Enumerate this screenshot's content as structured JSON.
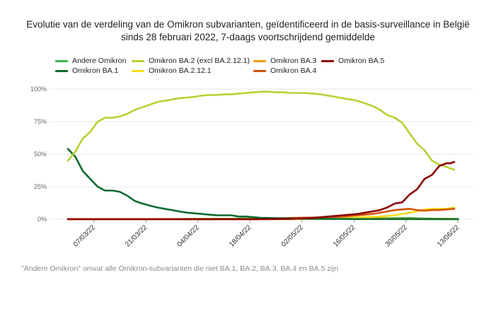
{
  "title_line1": "Evolutie van de verdeling van de Omikron subvarianten, geïdentificeerd in de basis-surveillance in België",
  "title_line2": "sinds 28 februari 2022, 7-daags voortschrijdend gemiddelde",
  "footnote": "\"Andere Omikron\" omvat alle Omikron-subvarianten die niet BA.1, BA.2, BA.3, BA.4 en BA.5 zijn",
  "chart_data": {
    "type": "line",
    "title": "Evolutie van de verdeling van de Omikron subvarianten, geïdentificeerd in de basis-surveillance in België sinds 28 februari 2022, 7-daags voortschrijdend gemiddelde",
    "ylim": [
      0,
      100
    ],
    "yticks": [
      "0%",
      "25%",
      "50%",
      "75%",
      "100%"
    ],
    "ytick_values": [
      0,
      25,
      50,
      75,
      100
    ],
    "xticks": [
      "07/03/22",
      "21/03/22",
      "04/04/22",
      "18/04/22",
      "02/05/22",
      "16/05/22",
      "30/05/22",
      "13/06/22"
    ],
    "xtick_days": [
      7,
      21,
      35,
      49,
      63,
      77,
      91,
      105
    ],
    "x_unit": "date (day of period starting 28/02/22)",
    "grid": "horizontal",
    "legend_position": "top",
    "series": [
      {
        "name": "Andere Omikron",
        "color": "#3cb44b",
        "points": [
          [
            0,
            0
          ],
          [
            20,
            0
          ],
          [
            40,
            0.3
          ],
          [
            60,
            0.5
          ],
          [
            80,
            0.5
          ],
          [
            88,
            0.8
          ],
          [
            92,
            1
          ],
          [
            96,
            0.5
          ],
          [
            100,
            0.3
          ],
          [
            105,
            0.2
          ]
        ]
      },
      {
        "name": "Omikron BA.1",
        "color": "#0b6b2e",
        "points": [
          [
            0,
            54
          ],
          [
            2,
            48
          ],
          [
            4,
            37
          ],
          [
            6,
            31
          ],
          [
            8,
            25
          ],
          [
            10,
            22
          ],
          [
            12,
            22
          ],
          [
            14,
            21
          ],
          [
            16,
            18
          ],
          [
            18,
            14
          ],
          [
            20,
            12
          ],
          [
            22,
            10.5
          ],
          [
            24,
            9
          ],
          [
            26,
            8
          ],
          [
            28,
            7
          ],
          [
            30,
            6
          ],
          [
            32,
            5
          ],
          [
            34,
            4.5
          ],
          [
            36,
            4
          ],
          [
            38,
            3.5
          ],
          [
            40,
            3
          ],
          [
            42,
            3
          ],
          [
            44,
            3
          ],
          [
            46,
            2
          ],
          [
            48,
            2
          ],
          [
            50,
            1.5
          ],
          [
            52,
            1
          ],
          [
            54,
            1
          ],
          [
            56,
            0.8
          ],
          [
            60,
            0.5
          ],
          [
            65,
            0.3
          ],
          [
            70,
            0.2
          ],
          [
            80,
            0.1
          ],
          [
            105,
            0
          ]
        ]
      },
      {
        "name": "Omikron BA.2 (excl BA.2.12.1)",
        "color": "#b5d334",
        "points": [
          [
            0,
            45
          ],
          [
            2,
            52
          ],
          [
            4,
            62
          ],
          [
            6,
            67
          ],
          [
            8,
            75
          ],
          [
            10,
            78
          ],
          [
            12,
            78
          ],
          [
            14,
            79
          ],
          [
            16,
            81
          ],
          [
            18,
            84
          ],
          [
            20,
            86
          ],
          [
            22,
            88
          ],
          [
            24,
            90
          ],
          [
            26,
            91
          ],
          [
            28,
            92
          ],
          [
            30,
            93
          ],
          [
            32,
            93.5
          ],
          [
            34,
            94
          ],
          [
            36,
            95
          ],
          [
            38,
            95.5
          ],
          [
            40,
            95.5
          ],
          [
            42,
            96
          ],
          [
            44,
            96
          ],
          [
            46,
            96.5
          ],
          [
            48,
            97
          ],
          [
            50,
            97.5
          ],
          [
            52,
            98
          ],
          [
            54,
            98
          ],
          [
            56,
            97.5
          ],
          [
            58,
            97.5
          ],
          [
            60,
            97
          ],
          [
            62,
            97
          ],
          [
            64,
            97
          ],
          [
            66,
            96.5
          ],
          [
            68,
            96
          ],
          [
            70,
            95
          ],
          [
            72,
            94
          ],
          [
            74,
            93
          ],
          [
            76,
            92
          ],
          [
            78,
            91
          ],
          [
            80,
            89
          ],
          [
            82,
            87
          ],
          [
            84,
            84
          ],
          [
            86,
            80
          ],
          [
            88,
            78
          ],
          [
            90,
            74
          ],
          [
            92,
            66
          ],
          [
            94,
            58
          ],
          [
            96,
            53
          ],
          [
            98,
            45
          ],
          [
            100,
            42
          ],
          [
            102,
            40
          ],
          [
            104,
            38
          ]
        ]
      },
      {
        "name": "Omikron BA.2.12.1",
        "color": "#f2df1a",
        "points": [
          [
            0,
            0
          ],
          [
            50,
            0
          ],
          [
            60,
            0
          ],
          [
            70,
            0.5
          ],
          [
            75,
            1
          ],
          [
            80,
            1.5
          ],
          [
            84,
            2
          ],
          [
            88,
            3
          ],
          [
            90,
            4
          ],
          [
            92,
            5
          ],
          [
            94,
            6
          ],
          [
            96,
            7.5
          ],
          [
            98,
            8
          ],
          [
            100,
            8
          ],
          [
            102,
            8
          ],
          [
            104,
            9
          ]
        ]
      },
      {
        "name": "Omikron BA.3",
        "color": "#f39c12",
        "points": [
          [
            0,
            0
          ],
          [
            60,
            0
          ],
          [
            75,
            0.3
          ],
          [
            80,
            0.5
          ],
          [
            84,
            0.5
          ],
          [
            88,
            0.3
          ],
          [
            92,
            0.3
          ],
          [
            96,
            0.2
          ],
          [
            100,
            0.2
          ],
          [
            104,
            0.2
          ]
        ]
      },
      {
        "name": "Omikron BA.4",
        "color": "#d35400",
        "points": [
          [
            0,
            0
          ],
          [
            50,
            0
          ],
          [
            55,
            0.5
          ],
          [
            60,
            1
          ],
          [
            65,
            1.2
          ],
          [
            70,
            1.5
          ],
          [
            74,
            2
          ],
          [
            78,
            3
          ],
          [
            82,
            4
          ],
          [
            86,
            6
          ],
          [
            88,
            7
          ],
          [
            90,
            7.5
          ],
          [
            92,
            8
          ],
          [
            94,
            7
          ],
          [
            96,
            6.5
          ],
          [
            98,
            7
          ],
          [
            100,
            7
          ],
          [
            102,
            7.5
          ],
          [
            104,
            8
          ]
        ]
      },
      {
        "name": "Omikron BA.5",
        "color": "#8b0000",
        "points": [
          [
            0,
            0
          ],
          [
            50,
            0
          ],
          [
            60,
            0.2
          ],
          [
            66,
            1
          ],
          [
            70,
            2
          ],
          [
            74,
            3
          ],
          [
            76,
            3.5
          ],
          [
            78,
            4
          ],
          [
            80,
            5
          ],
          [
            82,
            6
          ],
          [
            84,
            7
          ],
          [
            86,
            9
          ],
          [
            88,
            12
          ],
          [
            90,
            13
          ],
          [
            92,
            19
          ],
          [
            94,
            23
          ],
          [
            96,
            31
          ],
          [
            98,
            34
          ],
          [
            100,
            41
          ],
          [
            102,
            43
          ],
          [
            103,
            43
          ],
          [
            104,
            44
          ]
        ]
      }
    ]
  }
}
